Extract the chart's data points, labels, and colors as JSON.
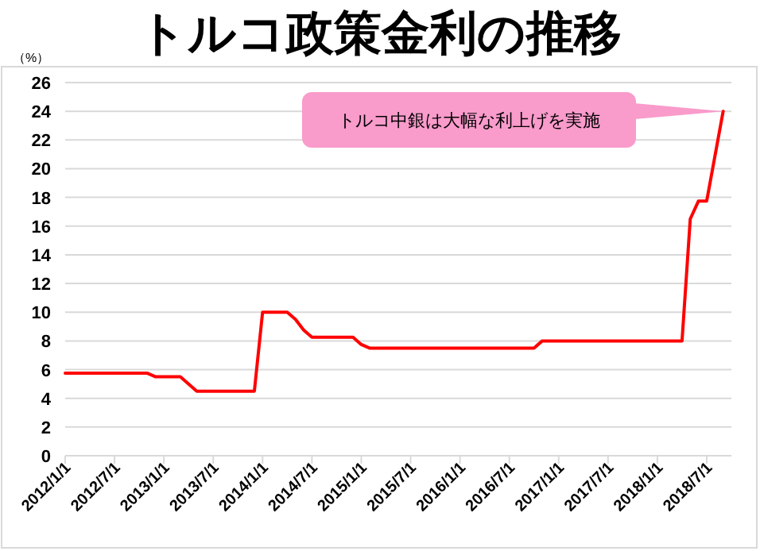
{
  "chart_data": {
    "type": "line",
    "title": "トルコ政策金利の推移",
    "ylabel": "（%）",
    "annotations": [
      {
        "text": "トルコ中銀は大幅な利上げを実施",
        "x": "2018-09",
        "y": 24
      }
    ],
    "x": [
      "2012-01",
      "2012-11",
      "2012-12",
      "2013-03",
      "2013-05",
      "2013-12",
      "2014-01",
      "2014-04",
      "2014-05",
      "2014-06",
      "2014-07",
      "2014-12",
      "2015-01",
      "2015-02",
      "2016-10",
      "2016-11",
      "2018-04",
      "2018-05",
      "2018-06",
      "2018-07",
      "2018-09"
    ],
    "series": [
      {
        "color": "#ff0000",
        "values": [
          5.75,
          5.75,
          5.5,
          5.5,
          4.5,
          4.5,
          10,
          10,
          9.5,
          8.75,
          8.25,
          8.25,
          7.75,
          7.5,
          7.5,
          8,
          8,
          16.5,
          17.75,
          17.75,
          24
        ]
      }
    ],
    "xlim": [
      "2012-01",
      "2018-10"
    ],
    "xticks": [
      {
        "value": "2012-01",
        "label": "2012/1/1"
      },
      {
        "value": "2012-07",
        "label": "2012/7/1"
      },
      {
        "value": "2013-01",
        "label": "2013/1/1"
      },
      {
        "value": "2013-07",
        "label": "2013/7/1"
      },
      {
        "value": "2014-01",
        "label": "2014/1/1"
      },
      {
        "value": "2014-07",
        "label": "2014/7/1"
      },
      {
        "value": "2015-01",
        "label": "2015/1/1"
      },
      {
        "value": "2015-07",
        "label": "2015/7/1"
      },
      {
        "value": "2016-01",
        "label": "2016/1/1"
      },
      {
        "value": "2016-07",
        "label": "2016/7/1"
      },
      {
        "value": "2017-01",
        "label": "2017/1/1"
      },
      {
        "value": "2017-07",
        "label": "2017/7/1"
      },
      {
        "value": "2018-01",
        "label": "2018/1/1"
      },
      {
        "value": "2018-07",
        "label": "2018/7/1"
      }
    ],
    "ylim": [
      0,
      26
    ],
    "yticks": [
      0,
      2,
      4,
      6,
      8,
      10,
      12,
      14,
      16,
      18,
      20,
      22,
      24,
      26
    ],
    "grid": "y",
    "marker": "none",
    "line_style": "solid"
  }
}
